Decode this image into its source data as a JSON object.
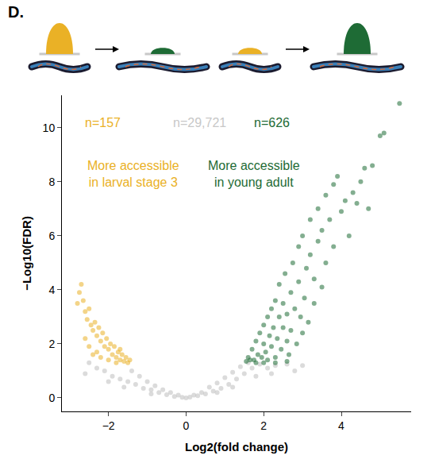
{
  "chart_data": {
    "type": "scatter",
    "panel_label": "D.",
    "x_label": "Log2(fold change)",
    "y_label": "−Log10(FDR)",
    "xlim": [
      -3.2,
      5.8
    ],
    "ylim": [
      -0.5,
      11.2
    ],
    "xticks": [
      -2,
      0,
      2,
      4
    ],
    "yticks": [
      0,
      2,
      4,
      6,
      8,
      10
    ],
    "grid": false,
    "series": [
      {
        "color": "#bdbdbd",
        "x": [
          -2.5,
          -2.3,
          -2.1,
          -1.9,
          -1.7,
          -1.5,
          -1.3,
          -1.1,
          -0.9,
          -0.7,
          -0.5,
          -0.3,
          -0.1,
          0.1,
          0.3,
          0.5,
          0.7,
          0.9,
          1.1,
          1.3,
          1.5,
          1.7,
          1.9,
          2.1,
          2.3,
          2.6,
          3.0,
          -1.4,
          -1.2,
          -1.0,
          -0.8,
          -0.6,
          -0.4,
          -0.2,
          0.0,
          0.2,
          0.4,
          0.6,
          0.8,
          1.0,
          1.2,
          1.4,
          1.6,
          1.2,
          0.8,
          -0.9,
          -1.6,
          -2.0,
          -2.6,
          1.8,
          2.2,
          2.8
        ],
        "values": [
          1.3,
          1.1,
          1.0,
          0.8,
          0.7,
          0.6,
          0.5,
          0.35,
          0.3,
          0.2,
          0.12,
          0.05,
          0.02,
          0.03,
          0.08,
          0.15,
          0.25,
          0.35,
          0.5,
          0.7,
          0.9,
          1.1,
          1.25,
          1.1,
          1.2,
          1.25,
          1.2,
          1.0,
          0.8,
          0.6,
          0.45,
          0.3,
          0.2,
          0.1,
          0.0,
          0.1,
          0.2,
          0.4,
          0.55,
          0.75,
          0.95,
          1.15,
          1.3,
          0.4,
          0.2,
          0.15,
          0.4,
          0.6,
          0.9,
          0.8,
          0.9,
          1.0
        ]
      },
      {
        "color": "#eab126",
        "x": [
          -2.75,
          -2.7,
          -2.8,
          -2.65,
          -2.6,
          -2.55,
          -2.5,
          -2.45,
          -2.4,
          -2.35,
          -2.3,
          -2.25,
          -2.2,
          -2.15,
          -2.1,
          -2.05,
          -2.0,
          -1.95,
          -1.9,
          -1.85,
          -1.8,
          -1.75,
          -1.7,
          -1.65,
          -1.6,
          -1.55,
          -1.5,
          -1.45,
          -2.6,
          -2.3,
          -2.0,
          -1.8,
          -2.5,
          -2.2,
          -1.7,
          -2.4
        ],
        "values": [
          3.9,
          4.2,
          3.5,
          3.6,
          3.2,
          2.9,
          3.3,
          2.7,
          2.5,
          2.8,
          2.3,
          2.6,
          2.1,
          2.4,
          1.9,
          2.2,
          1.8,
          2.0,
          1.6,
          1.9,
          1.5,
          1.7,
          1.4,
          1.6,
          1.35,
          1.5,
          1.3,
          1.4,
          2.2,
          1.7,
          1.4,
          1.3,
          1.9,
          1.5,
          1.8,
          1.6
        ]
      },
      {
        "color": "#1e6b35",
        "x": [
          1.55,
          1.6,
          1.65,
          1.7,
          1.75,
          1.8,
          1.85,
          1.9,
          1.95,
          2.0,
          2.0,
          2.05,
          2.1,
          2.1,
          2.15,
          2.2,
          2.2,
          2.25,
          2.3,
          2.3,
          2.35,
          2.4,
          2.4,
          2.45,
          2.5,
          2.5,
          2.55,
          2.6,
          2.6,
          2.65,
          2.7,
          2.7,
          2.75,
          2.8,
          2.85,
          2.9,
          2.9,
          2.95,
          3.0,
          3.0,
          3.05,
          3.1,
          3.15,
          3.2,
          3.2,
          3.3,
          3.3,
          3.4,
          3.4,
          3.5,
          3.5,
          3.6,
          3.6,
          3.7,
          3.8,
          3.8,
          3.9,
          4.0,
          4.1,
          4.2,
          4.3,
          4.4,
          4.5,
          4.6,
          4.7,
          4.8,
          5.0,
          5.1,
          5.5,
          2.0,
          2.3,
          2.6,
          1.8
        ],
        "values": [
          1.35,
          1.5,
          1.4,
          1.8,
          1.4,
          2.1,
          1.6,
          2.4,
          1.5,
          2.0,
          2.7,
          1.7,
          3.0,
          1.4,
          2.3,
          3.3,
          1.9,
          2.6,
          3.6,
          1.5,
          2.2,
          3.0,
          4.2,
          1.8,
          2.6,
          3.5,
          4.6,
          2.1,
          3.1,
          1.6,
          3.9,
          2.5,
          5.0,
          3.3,
          2.0,
          4.3,
          5.6,
          3.0,
          2.4,
          6.0,
          3.7,
          4.8,
          2.8,
          5.3,
          6.6,
          3.5,
          4.4,
          5.8,
          7.0,
          4.1,
          6.2,
          5.0,
          7.5,
          6.6,
          7.9,
          5.6,
          8.2,
          6.9,
          7.3,
          6.0,
          7.6,
          7.2,
          8.0,
          8.5,
          7.0,
          8.6,
          9.7,
          9.8,
          10.9,
          1.3,
          1.3,
          1.35,
          1.3
        ]
      }
    ],
    "annotations": [
      {
        "text": "n=157",
        "x": -2.15,
        "y": 10.2,
        "color": "#eab126"
      },
      {
        "text": "n=29,721",
        "x": 0.35,
        "y": 10.2,
        "color": "#c8c8c8"
      },
      {
        "text": "n=626",
        "x": 2.2,
        "y": 10.2,
        "color": "#1e6b35"
      },
      {
        "text": "More accessible\nin larval stage 3",
        "x": -1.35,
        "y": 8.3,
        "color": "#eab126"
      },
      {
        "text": "More accessible\nin young adult",
        "x": 1.75,
        "y": 8.3,
        "color": "#1e6b35"
      }
    ]
  }
}
